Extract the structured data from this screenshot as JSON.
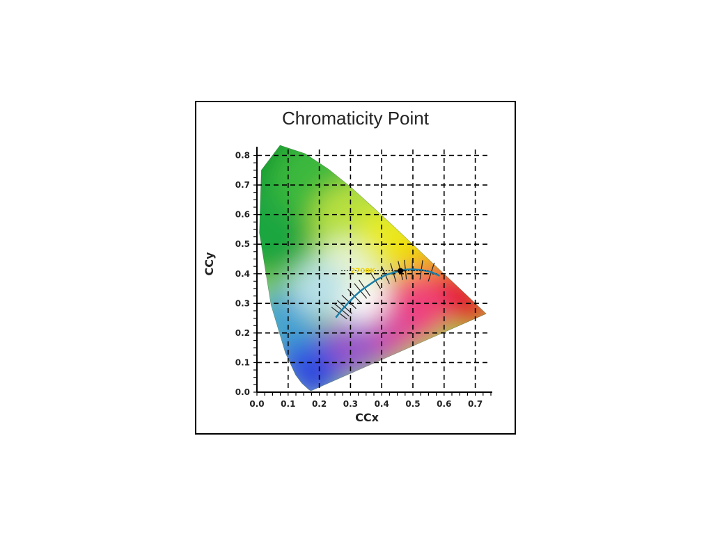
{
  "chart_data": {
    "type": "scatter",
    "title": "Chromaticity Point",
    "xlabel": "CCx",
    "ylabel": "CCy",
    "xlim": [
      0.0,
      0.75
    ],
    "ylim": [
      0.0,
      0.82
    ],
    "x_ticks": [
      "0.0",
      "0.1",
      "0.2",
      "0.3",
      "0.4",
      "0.5",
      "0.6",
      "0.7"
    ],
    "y_ticks": [
      "0.0",
      "0.1",
      "0.2",
      "0.3",
      "0.4",
      "0.5",
      "0.6",
      "0.7",
      "0.8"
    ],
    "grid": true,
    "grid_style": "dashed",
    "spectral_locus": [
      [
        0.174,
        0.005
      ],
      [
        0.172,
        0.005
      ],
      [
        0.166,
        0.009
      ],
      [
        0.144,
        0.03
      ],
      [
        0.124,
        0.058
      ],
      [
        0.091,
        0.133
      ],
      [
        0.045,
        0.295
      ],
      [
        0.008,
        0.538
      ],
      [
        0.014,
        0.75
      ],
      [
        0.074,
        0.834
      ],
      [
        0.155,
        0.806
      ],
      [
        0.229,
        0.754
      ],
      [
        0.302,
        0.692
      ],
      [
        0.373,
        0.624
      ],
      [
        0.444,
        0.555
      ],
      [
        0.512,
        0.487
      ],
      [
        0.575,
        0.424
      ],
      [
        0.627,
        0.373
      ],
      [
        0.666,
        0.334
      ],
      [
        0.735,
        0.265
      ]
    ],
    "planckian_locus": [
      [
        0.253,
        0.252
      ],
      [
        0.264,
        0.267
      ],
      [
        0.272,
        0.278
      ],
      [
        0.281,
        0.288
      ],
      [
        0.295,
        0.305
      ],
      [
        0.313,
        0.324
      ],
      [
        0.332,
        0.342
      ],
      [
        0.345,
        0.352
      ],
      [
        0.38,
        0.377
      ],
      [
        0.412,
        0.396
      ],
      [
        0.437,
        0.404
      ],
      [
        0.46,
        0.411
      ],
      [
        0.476,
        0.414
      ],
      [
        0.498,
        0.415
      ],
      [
        0.527,
        0.413
      ],
      [
        0.559,
        0.406
      ],
      [
        0.586,
        0.393
      ]
    ],
    "measured_point": {
      "x": 0.46,
      "y": 0.41
    },
    "cct_value": "2700K",
    "colors": {
      "locus_line": "#1a7fa8",
      "point": "#000000",
      "grid": "#000000",
      "cct_value": "#f0d000"
    }
  }
}
